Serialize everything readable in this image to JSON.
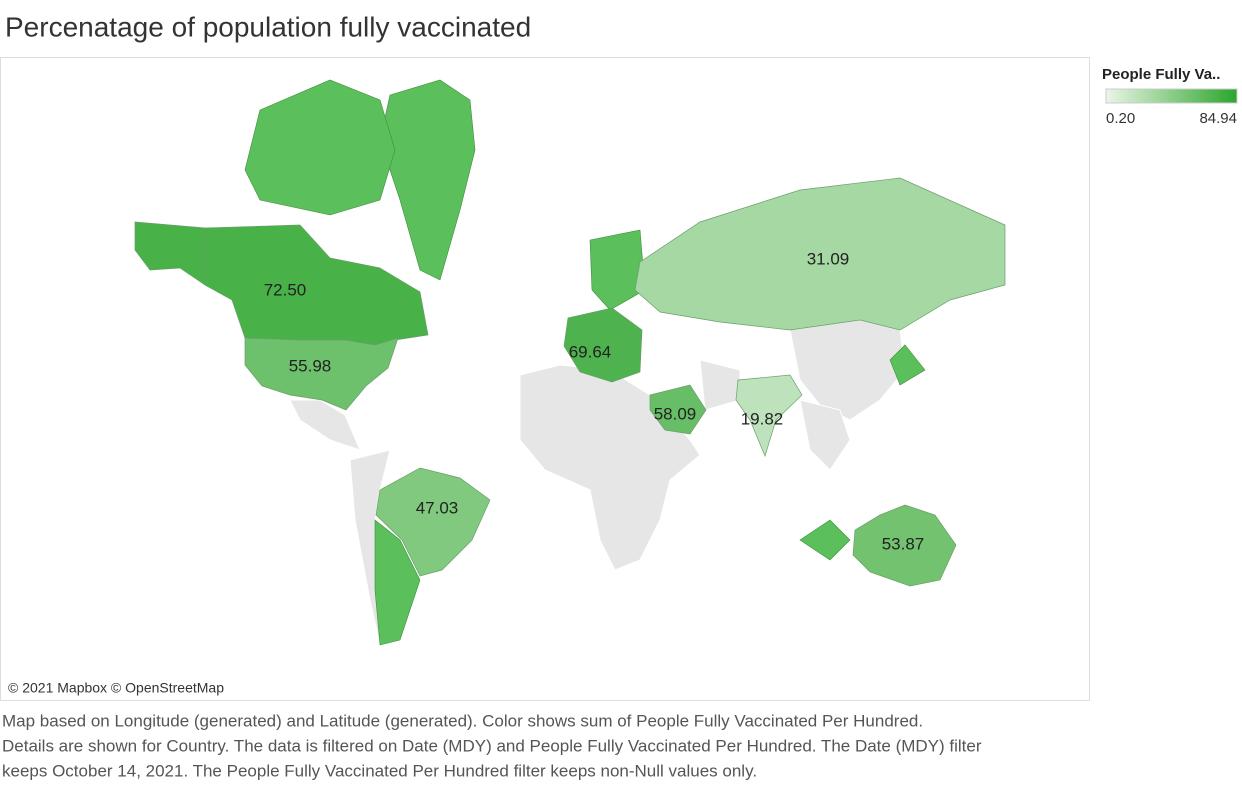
{
  "chart_data": {
    "type": "map",
    "title": "Percenatage of population fully vaccinated",
    "values": [
      72.5,
      55.98,
      47.03,
      69.64,
      31.09,
      58.09,
      19.82,
      53.87
    ],
    "value_labels": [
      "72.50",
      "55.98",
      "47.03",
      "69.64",
      "31.09",
      "58.09",
      "19.82",
      "53.87"
    ],
    "legend": {
      "title": "People Fully Va..",
      "range": [
        0.2,
        84.94
      ],
      "range_labels": [
        "0.20",
        "84.94"
      ],
      "colors": [
        "#eaf5e6",
        "#2ca52c"
      ]
    },
    "attribution": "© 2021 Mapbox © OpenStreetMap",
    "caption": [
      "Map based on Longitude (generated) and Latitude (generated).  Color shows sum of People Fully Vaccinated Per Hundred.",
      "Details are shown for Country. The data is filtered on Date (MDY) and People Fully Vaccinated Per Hundred. The Date (MDY) filter",
      "keeps October 14, 2021. The People Fully Vaccinated Per Hundred filter keeps non-Null values only."
    ]
  }
}
